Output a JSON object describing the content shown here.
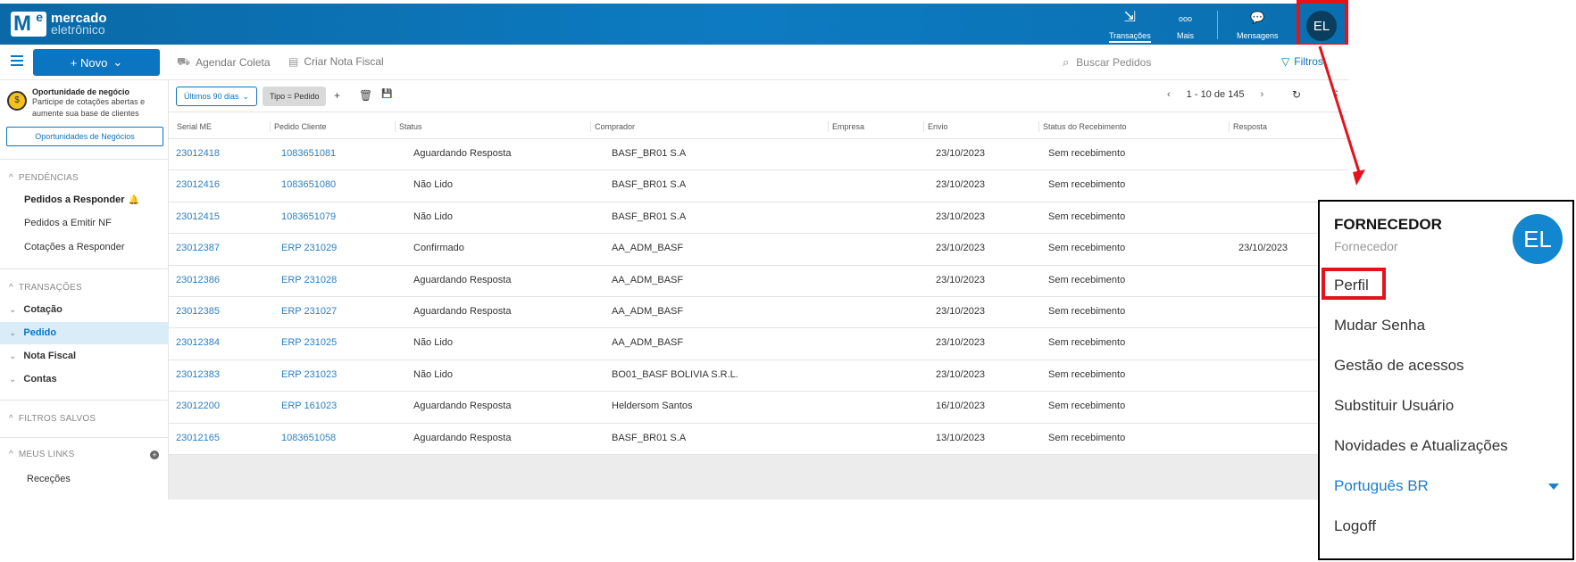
{
  "header": {
    "logo_line1": "mercado",
    "logo_line2": "eletrônico",
    "logo_mark": "M",
    "logo_mark_e": "e",
    "nav": [
      {
        "label": "Transações",
        "icon": "transactions-icon",
        "glyph": "⇲"
      },
      {
        "label": "Mais",
        "icon": "more-icon",
        "glyph": "ooo"
      },
      {
        "label": "Mensagens",
        "icon": "messages-icon",
        "glyph": "💬"
      }
    ],
    "avatar_initials": "EL"
  },
  "toolbar": {
    "novo_label": "+ Novo",
    "actions": [
      {
        "label": "Agendar Coleta",
        "icon": "truck-icon"
      },
      {
        "label": "Criar Nota Fiscal",
        "icon": "document-icon"
      }
    ],
    "search_placeholder": "Buscar Pedidos",
    "filters_label": "Filtros"
  },
  "sidebar": {
    "opportunity_title": "Oportunidade de negócio",
    "opportunity_text1": "Participe de cotações abertas e",
    "opportunity_text2": "aumente sua base de clientes",
    "opportunity_button": "Oportunidades de Negócios",
    "pendencias_title": "PENDÊNCIAS",
    "pendencias": [
      "Pedidos a Responder",
      "Pedidos a Emitir NF",
      "Cotações a Responder"
    ],
    "transacoes_title": "TRANSAÇÕES",
    "transacoes": [
      "Cotação",
      "Pedido",
      "Nota Fiscal",
      "Contas"
    ],
    "active_item": "Pedido",
    "filtros_salvos": "FILTROS SALVOS",
    "meus_links": "MEUS LINKS",
    "links": [
      "Receções"
    ]
  },
  "filterbar": {
    "period_label": "Últimos 90 dias",
    "type_chip": "Tipo = Pedido",
    "pagination": "1 - 10 de 145"
  },
  "table": {
    "columns": [
      "Serial ME",
      "Pedido Cliente",
      "Status",
      "Comprador",
      "Empresa",
      "Envio",
      "Status do Recebimento",
      "Resposta"
    ],
    "rows": [
      [
        "23012418",
        "1083651081",
        "Aguardando Resposta",
        "BASF_BR01 S.A",
        "",
        "23/10/2023",
        "Sem recebimento",
        ""
      ],
      [
        "23012416",
        "1083651080",
        "Não Lido",
        "BASF_BR01 S.A",
        "",
        "23/10/2023",
        "Sem recebimento",
        ""
      ],
      [
        "23012415",
        "1083651079",
        "Não Lido",
        "BASF_BR01 S.A",
        "",
        "23/10/2023",
        "Sem recebimento",
        ""
      ],
      [
        "23012387",
        "ERP 231029",
        "Confirmado",
        "AA_ADM_BASF",
        "",
        "23/10/2023",
        "Sem recebimento",
        "23/10/2023"
      ],
      [
        "23012386",
        "ERP 231028",
        "Aguardando Resposta",
        "AA_ADM_BASF",
        "",
        "23/10/2023",
        "Sem recebimento",
        ""
      ],
      [
        "23012385",
        "ERP 231027",
        "Aguardando Resposta",
        "AA_ADM_BASF",
        "",
        "23/10/2023",
        "Sem recebimento",
        ""
      ],
      [
        "23012384",
        "ERP 231025",
        "Não Lido",
        "AA_ADM_BASF",
        "",
        "23/10/2023",
        "Sem recebimento",
        ""
      ],
      [
        "23012383",
        "ERP 231023",
        "Não Lido",
        "BO01_BASF BOLIVIA S.R.L.",
        "",
        "23/10/2023",
        "Sem recebimento",
        ""
      ],
      [
        "23012200",
        "ERP 161023",
        "Aguardando Resposta",
        "Heldersom Santos",
        "",
        "16/10/2023",
        "Sem recebimento",
        ""
      ],
      [
        "23012165",
        "1083651058",
        "Aguardando Resposta",
        "BASF_BR01 S.A",
        "",
        "13/10/2023",
        "Sem recebimento",
        ""
      ]
    ]
  },
  "dropdown": {
    "title": "FORNECEDOR",
    "subtitle": "Fornecedor",
    "avatar_initials": "EL",
    "items": [
      "Perfil",
      "Mudar Senha",
      "Gestão de acessos",
      "Substituir Usuário",
      "Novidades e Atualizações",
      "Português BR",
      "Logoff"
    ]
  },
  "colors": {
    "brand_blue": "#0b75c2",
    "highlight_red": "#e3121b",
    "active_row_bg": "#d9ecf8"
  }
}
